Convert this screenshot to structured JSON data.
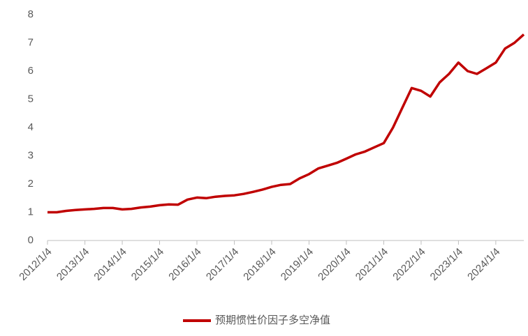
{
  "chart_data": {
    "type": "line",
    "x": [
      "2012/1/4",
      "2012/4/4",
      "2012/7/4",
      "2012/10/4",
      "2013/1/4",
      "2013/4/4",
      "2013/7/4",
      "2013/10/4",
      "2014/1/4",
      "2014/4/4",
      "2014/7/4",
      "2014/10/4",
      "2015/1/4",
      "2015/4/4",
      "2015/7/4",
      "2015/10/4",
      "2016/1/4",
      "2016/4/4",
      "2016/7/4",
      "2016/10/4",
      "2017/1/4",
      "2017/4/4",
      "2017/7/4",
      "2017/10/4",
      "2018/1/4",
      "2018/4/4",
      "2018/7/4",
      "2018/10/4",
      "2019/1/4",
      "2019/4/4",
      "2019/7/4",
      "2019/10/4",
      "2020/1/4",
      "2020/4/4",
      "2020/7/4",
      "2020/10/4",
      "2021/1/4",
      "2021/4/4",
      "2021/7/4",
      "2021/10/4",
      "2022/1/4",
      "2022/4/4",
      "2022/7/4",
      "2022/10/4",
      "2023/1/4",
      "2023/4/4",
      "2023/7/4",
      "2023/10/4",
      "2024/1/4",
      "2024/4/4",
      "2024/7/4",
      "2024/10/4"
    ],
    "series": [
      {
        "name": "预期惯性价因子多空净值",
        "color": "#c00000",
        "values": [
          1.0,
          1.0,
          1.05,
          1.08,
          1.1,
          1.12,
          1.15,
          1.15,
          1.1,
          1.12,
          1.17,
          1.2,
          1.25,
          1.28,
          1.27,
          1.45,
          1.52,
          1.5,
          1.55,
          1.58,
          1.6,
          1.65,
          1.72,
          1.8,
          1.9,
          1.97,
          2.0,
          2.2,
          2.35,
          2.55,
          2.65,
          2.75,
          2.9,
          3.05,
          3.15,
          3.3,
          3.45,
          4.0,
          4.7,
          5.4,
          5.3,
          5.1,
          5.6,
          5.9,
          6.3,
          6.0,
          5.9,
          6.1,
          6.3,
          6.8,
          7.0,
          7.3
        ]
      }
    ],
    "xlim": [
      "2012/1/4",
      "2024/10/4"
    ],
    "xticks": [
      "2012/1/4",
      "2013/1/4",
      "2014/1/4",
      "2015/1/4",
      "2016/1/4",
      "2017/1/4",
      "2018/1/4",
      "2019/1/4",
      "2020/1/4",
      "2021/1/4",
      "2022/1/4",
      "2023/1/4",
      "2024/1/4"
    ],
    "ylim": [
      0,
      8
    ],
    "yticks": [
      0,
      1,
      2,
      3,
      4,
      5,
      6,
      7,
      8
    ],
    "legend": "bottom"
  }
}
